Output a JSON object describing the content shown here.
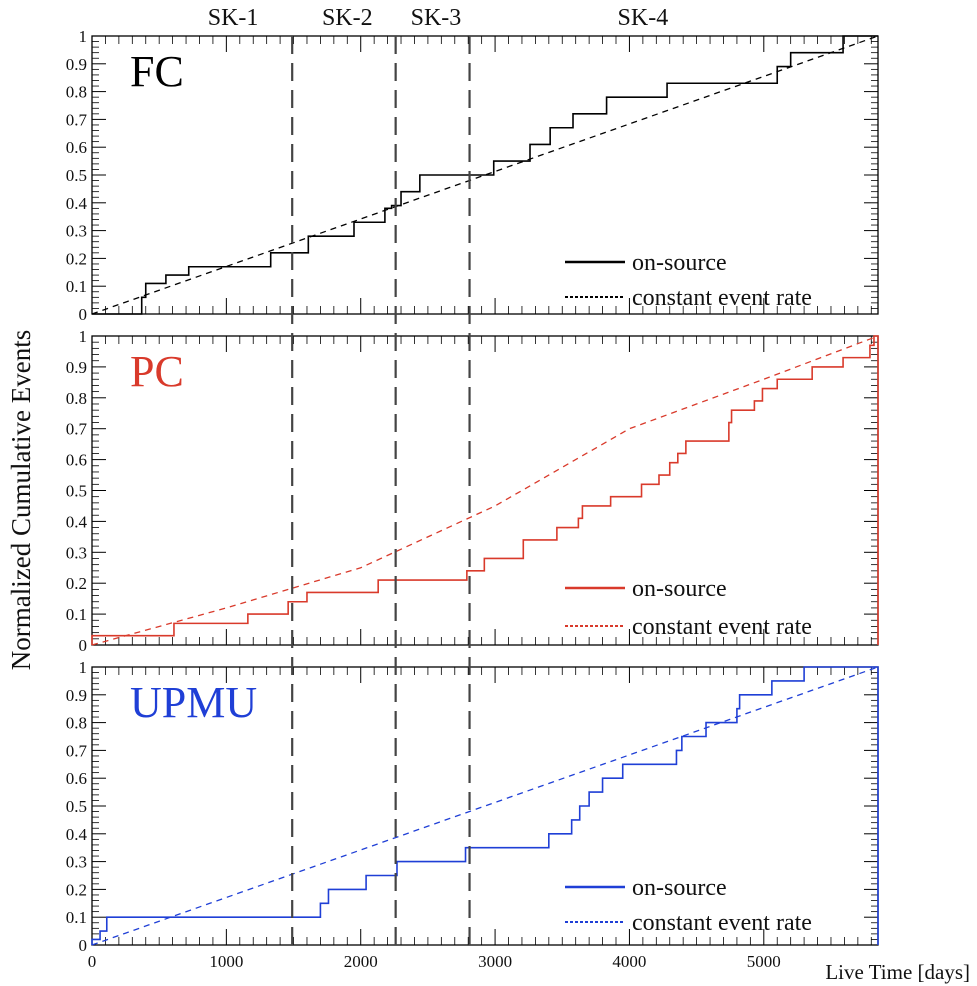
{
  "ylabel": "Normalized Cumulative Events",
  "xlabel": "Live Time [days]",
  "x_ticks": [
    "0",
    "1000",
    "2000",
    "3000",
    "4000",
    "5000"
  ],
  "x_tick_values": [
    0,
    1000,
    2000,
    3000,
    4000,
    5000
  ],
  "y_ticks": [
    "0",
    "0.1",
    "0.2",
    "0.3",
    "0.4",
    "0.5",
    "0.6",
    "0.7",
    "0.8",
    "0.9",
    "1"
  ],
  "y_tick_values": [
    0,
    0.1,
    0.2,
    0.3,
    0.4,
    0.5,
    0.6,
    0.7,
    0.8,
    0.9,
    1.0
  ],
  "xlim": [
    0,
    5850
  ],
  "ylim": [
    0,
    1
  ],
  "periods": [
    {
      "label": "SK-1",
      "center": 1050
    },
    {
      "label": "SK-2",
      "center": 1900
    },
    {
      "label": "SK-3",
      "center": 2560
    },
    {
      "label": "SK-4",
      "center": 4100
    }
  ],
  "boundaries": [
    1490,
    2260,
    2810
  ],
  "chart_data": [
    {
      "type": "line",
      "title": "FC",
      "color": "#000000",
      "xlim": [
        0,
        5850
      ],
      "ylim": [
        0,
        1
      ],
      "legend": "bottom-right",
      "series": [
        {
          "name": "on-source",
          "style": "step",
          "points": [
            [
              0,
              0
            ],
            [
              370,
              0
            ],
            [
              370,
              0.06
            ],
            [
              400,
              0.06
            ],
            [
              400,
              0.11
            ],
            [
              550,
              0.11
            ],
            [
              550,
              0.14
            ],
            [
              720,
              0.14
            ],
            [
              720,
              0.17
            ],
            [
              1330,
              0.17
            ],
            [
              1330,
              0.22
            ],
            [
              1610,
              0.22
            ],
            [
              1610,
              0.28
            ],
            [
              1950,
              0.28
            ],
            [
              1950,
              0.33
            ],
            [
              2180,
              0.33
            ],
            [
              2180,
              0.38
            ],
            [
              2230,
              0.38
            ],
            [
              2230,
              0.39
            ],
            [
              2300,
              0.39
            ],
            [
              2300,
              0.44
            ],
            [
              2440,
              0.44
            ],
            [
              2440,
              0.5
            ],
            [
              2990,
              0.5
            ],
            [
              2990,
              0.55
            ],
            [
              3260,
              0.55
            ],
            [
              3260,
              0.61
            ],
            [
              3410,
              0.61
            ],
            [
              3410,
              0.67
            ],
            [
              3580,
              0.67
            ],
            [
              3580,
              0.72
            ],
            [
              3830,
              0.72
            ],
            [
              3830,
              0.78
            ],
            [
              4280,
              0.78
            ],
            [
              4280,
              0.83
            ],
            [
              5100,
              0.83
            ],
            [
              5100,
              0.89
            ],
            [
              5200,
              0.89
            ],
            [
              5200,
              0.94
            ],
            [
              5590,
              0.94
            ],
            [
              5590,
              1.0
            ],
            [
              5850,
              1.0
            ]
          ]
        },
        {
          "name": "constant event rate",
          "style": "dashed",
          "points": [
            [
              0,
              0
            ],
            [
              5850,
              1.0
            ]
          ]
        }
      ]
    },
    {
      "type": "line",
      "title": "PC",
      "color": "#d93a2b",
      "xlim": [
        0,
        5850
      ],
      "ylim": [
        0,
        1
      ],
      "legend": "bottom-right",
      "series": [
        {
          "name": "on-source",
          "style": "step",
          "points": [
            [
              0,
              0
            ],
            [
              0,
              0.03
            ],
            [
              610,
              0.03
            ],
            [
              610,
              0.07
            ],
            [
              1160,
              0.07
            ],
            [
              1160,
              0.1
            ],
            [
              1460,
              0.1
            ],
            [
              1460,
              0.14
            ],
            [
              1600,
              0.14
            ],
            [
              1600,
              0.17
            ],
            [
              2130,
              0.17
            ],
            [
              2130,
              0.21
            ],
            [
              2790,
              0.21
            ],
            [
              2790,
              0.24
            ],
            [
              2920,
              0.24
            ],
            [
              2920,
              0.28
            ],
            [
              3210,
              0.28
            ],
            [
              3210,
              0.34
            ],
            [
              3460,
              0.34
            ],
            [
              3460,
              0.38
            ],
            [
              3620,
              0.38
            ],
            [
              3620,
              0.41
            ],
            [
              3650,
              0.41
            ],
            [
              3650,
              0.45
            ],
            [
              3860,
              0.45
            ],
            [
              3860,
              0.48
            ],
            [
              4090,
              0.48
            ],
            [
              4090,
              0.52
            ],
            [
              4220,
              0.52
            ],
            [
              4220,
              0.55
            ],
            [
              4300,
              0.55
            ],
            [
              4300,
              0.59
            ],
            [
              4360,
              0.59
            ],
            [
              4360,
              0.62
            ],
            [
              4420,
              0.62
            ],
            [
              4420,
              0.66
            ],
            [
              4740,
              0.66
            ],
            [
              4740,
              0.72
            ],
            [
              4760,
              0.72
            ],
            [
              4760,
              0.76
            ],
            [
              4930,
              0.76
            ],
            [
              4930,
              0.79
            ],
            [
              4990,
              0.79
            ],
            [
              4990,
              0.83
            ],
            [
              5100,
              0.83
            ],
            [
              5100,
              0.86
            ],
            [
              5360,
              0.86
            ],
            [
              5360,
              0.9
            ],
            [
              5590,
              0.9
            ],
            [
              5590,
              0.93
            ],
            [
              5790,
              0.93
            ],
            [
              5790,
              0.97
            ],
            [
              5820,
              0.97
            ],
            [
              5820,
              1.0
            ],
            [
              5850,
              1.0
            ],
            [
              5850,
              0
            ]
          ]
        },
        {
          "name": "constant event rate",
          "style": "dashed",
          "points": [
            [
              0,
              0
            ],
            [
              1000,
              0.12
            ],
            [
              2000,
              0.25
            ],
            [
              3000,
              0.45
            ],
            [
              4000,
              0.7
            ],
            [
              5000,
              0.86
            ],
            [
              5850,
              1.0
            ]
          ]
        }
      ]
    },
    {
      "type": "line",
      "title": "UPMU",
      "color": "#1f3fd6",
      "xlim": [
        0,
        5850
      ],
      "ylim": [
        0,
        1
      ],
      "legend": "bottom-right",
      "series": [
        {
          "name": "on-source",
          "style": "step",
          "points": [
            [
              0,
              0
            ],
            [
              0,
              0.02
            ],
            [
              60,
              0.02
            ],
            [
              60,
              0.05
            ],
            [
              110,
              0.05
            ],
            [
              110,
              0.1
            ],
            [
              1700,
              0.1
            ],
            [
              1700,
              0.15
            ],
            [
              1760,
              0.15
            ],
            [
              1760,
              0.2
            ],
            [
              2040,
              0.2
            ],
            [
              2040,
              0.25
            ],
            [
              2270,
              0.25
            ],
            [
              2270,
              0.3
            ],
            [
              2780,
              0.3
            ],
            [
              2780,
              0.35
            ],
            [
              3400,
              0.35
            ],
            [
              3400,
              0.4
            ],
            [
              3570,
              0.4
            ],
            [
              3570,
              0.45
            ],
            [
              3630,
              0.45
            ],
            [
              3630,
              0.5
            ],
            [
              3700,
              0.5
            ],
            [
              3700,
              0.55
            ],
            [
              3800,
              0.55
            ],
            [
              3800,
              0.6
            ],
            [
              3950,
              0.6
            ],
            [
              3950,
              0.65
            ],
            [
              4350,
              0.65
            ],
            [
              4350,
              0.7
            ],
            [
              4390,
              0.7
            ],
            [
              4390,
              0.75
            ],
            [
              4570,
              0.75
            ],
            [
              4570,
              0.8
            ],
            [
              4800,
              0.8
            ],
            [
              4800,
              0.85
            ],
            [
              4820,
              0.85
            ],
            [
              4820,
              0.9
            ],
            [
              5060,
              0.9
            ],
            [
              5060,
              0.95
            ],
            [
              5300,
              0.95
            ],
            [
              5300,
              1.0
            ],
            [
              5850,
              1.0
            ],
            [
              5850,
              0
            ]
          ]
        },
        {
          "name": "constant event rate",
          "style": "dashed",
          "points": [
            [
              0,
              0
            ],
            [
              5850,
              1.0
            ]
          ]
        }
      ]
    }
  ]
}
